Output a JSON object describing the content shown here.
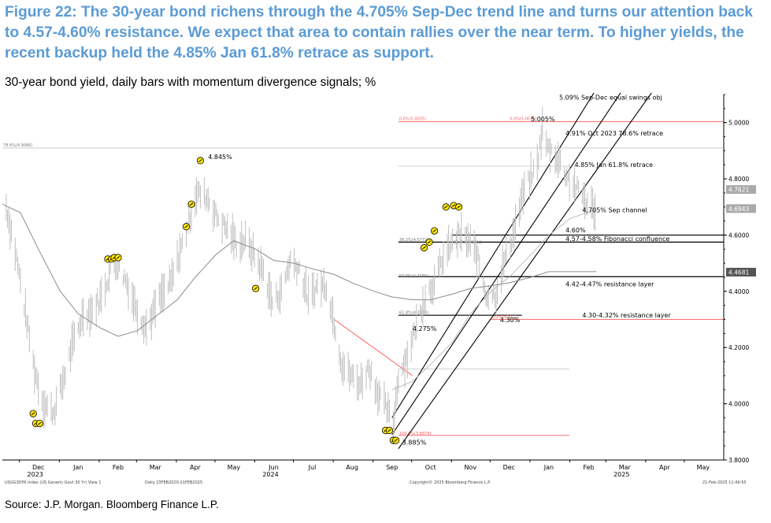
{
  "figure": {
    "title": "Figure 22: The 30-year bond richens through the 4.705% Sep-Dec trend line and turns our attention back to 4.57-4.60% resistance. We expect that area to contain rallies over the near term. To higher yields, the recent backup held the 4.85% Jan 61.8% retrace as support.",
    "subtitle": "30-year bond yield, daily bars with momentum divergence signals; %",
    "source": "Source: J.P. Morgan. Bloomberg Finance L.P."
  },
  "footer": {
    "left1": "USGG30YR Index (US Generic Govt 30 Yr) View 1",
    "left2": "Daily 23FEB2020-21FEB2025",
    "center": "Copyright© 2025 Bloomberg Finance L.P.",
    "right": "21-Feb-2025 11:49:55"
  },
  "colors": {
    "price_bars": "#bfbfbf",
    "moving_average": "#8c8c8c",
    "channel_lines": "#000000",
    "fib_lines": "#ff7070",
    "signal_marker": "#ffe600",
    "accent_title": "#5b9bd5"
  },
  "chart_data": {
    "type": "line",
    "description_type": "ohlc-daily-bars",
    "ylim": [
      3.8,
      5.1
    ],
    "y_ticks": [
      "5.0000",
      "4.8000",
      "4.6000",
      "4.4000",
      "4.2000",
      "4.0000",
      "3.8000"
    ],
    "y_tick_values": [
      5.0,
      4.8,
      4.6,
      4.4,
      4.2,
      4.0,
      3.8
    ],
    "x_month_labels": [
      "Dec",
      "Jan",
      "Feb",
      "Mar",
      "Apr",
      "May",
      "Jun",
      "Jul",
      "Aug",
      "Sep",
      "Oct",
      "Nov",
      "Dec",
      "Jan",
      "Feb",
      "Mar",
      "Apr",
      "May"
    ],
    "x_month_dates": [
      "2023-12-15",
      "2024-01-15",
      "2024-02-15",
      "2024-03-15",
      "2024-04-15",
      "2024-05-15",
      "2024-06-15",
      "2024-07-15",
      "2024-08-15",
      "2024-09-15",
      "2024-10-15",
      "2024-11-15",
      "2024-12-15",
      "2025-01-15",
      "2025-02-15",
      "2025-03-15",
      "2025-04-15",
      "2025-05-15"
    ],
    "x_year_labels": [
      "2023",
      "2024",
      "2025"
    ],
    "x_year_dates": [
      "2023-12-15",
      "2024-06-15",
      "2025-03-15"
    ],
    "x_range": [
      "2023-11-17",
      "2025-05-31"
    ],
    "yield_close_path": {
      "x": [
        "2023-11-20",
        "2023-11-28",
        "2023-12-05",
        "2023-12-12",
        "2023-12-19",
        "2023-12-27",
        "2024-01-05",
        "2024-01-10",
        "2024-01-19",
        "2024-01-26",
        "2024-02-02",
        "2024-02-09",
        "2024-02-14",
        "2024-02-21",
        "2024-03-01",
        "2024-03-08",
        "2024-03-18",
        "2024-03-27",
        "2024-04-05",
        "2024-04-16",
        "2024-04-25",
        "2024-05-01",
        "2024-05-10",
        "2024-05-17",
        "2024-05-24",
        "2024-05-31",
        "2024-06-07",
        "2024-06-14",
        "2024-06-21",
        "2024-06-28",
        "2024-07-05",
        "2024-07-12",
        "2024-07-19",
        "2024-07-26",
        "2024-08-02",
        "2024-08-07",
        "2024-08-14",
        "2024-08-21",
        "2024-08-28",
        "2024-09-04",
        "2024-09-11",
        "2024-09-16",
        "2024-09-20",
        "2024-09-27",
        "2024-10-04",
        "2024-10-11",
        "2024-10-18",
        "2024-10-25",
        "2024-11-01",
        "2024-11-06",
        "2024-11-13",
        "2024-11-20",
        "2024-11-27",
        "2024-12-05",
        "2024-12-11",
        "2024-12-18",
        "2024-12-27",
        "2025-01-06",
        "2025-01-10",
        "2025-01-14",
        "2025-01-21",
        "2025-01-28",
        "2025-02-03",
        "2025-02-10",
        "2025-02-14",
        "2025-02-21"
      ],
      "y": [
        4.7,
        4.52,
        4.32,
        4.12,
        4.0,
        3.97,
        4.11,
        4.2,
        4.32,
        4.33,
        4.38,
        4.47,
        4.5,
        4.44,
        4.33,
        4.27,
        4.37,
        4.43,
        4.57,
        4.75,
        4.73,
        4.67,
        4.62,
        4.57,
        4.58,
        4.53,
        4.47,
        4.36,
        4.4,
        4.51,
        4.48,
        4.37,
        4.42,
        4.42,
        4.27,
        4.14,
        4.1,
        4.07,
        4.13,
        4.04,
        3.98,
        3.92,
        4.1,
        4.17,
        4.28,
        4.39,
        4.43,
        4.52,
        4.57,
        4.6,
        4.58,
        4.53,
        4.39,
        4.39,
        4.5,
        4.6,
        4.76,
        4.85,
        4.98,
        4.91,
        4.88,
        4.82,
        4.78,
        4.74,
        4.71,
        4.69
      ]
    },
    "moving_average_long": {
      "x": [
        "2023-11-17",
        "2023-12-01",
        "2023-12-15",
        "2024-01-01",
        "2024-01-15",
        "2024-02-01",
        "2024-02-15",
        "2024-03-01",
        "2024-03-15",
        "2024-04-01",
        "2024-04-15",
        "2024-05-01",
        "2024-05-15",
        "2024-06-01",
        "2024-06-15",
        "2024-07-01",
        "2024-07-15",
        "2024-08-01",
        "2024-08-15",
        "2024-09-01",
        "2024-09-15",
        "2024-10-01",
        "2024-10-15",
        "2024-11-01",
        "2024-11-15",
        "2024-12-01",
        "2024-12-15",
        "2025-01-01",
        "2025-01-15",
        "2025-02-01",
        "2025-02-21"
      ],
      "y": [
        4.71,
        4.68,
        4.55,
        4.4,
        4.32,
        4.27,
        4.24,
        4.26,
        4.31,
        4.37,
        4.45,
        4.53,
        4.58,
        4.55,
        4.51,
        4.5,
        4.48,
        4.46,
        4.43,
        4.4,
        4.38,
        4.37,
        4.37,
        4.39,
        4.41,
        4.42,
        4.43,
        4.45,
        4.47,
        4.47,
        4.47
      ]
    },
    "moving_average_short": {
      "x": [
        "2024-09-15",
        "2024-10-01",
        "2024-10-15",
        "2024-11-01",
        "2024-11-15",
        "2024-12-01",
        "2024-12-15",
        "2025-01-01",
        "2025-01-15",
        "2025-02-01",
        "2025-02-21"
      ],
      "y": [
        4.05,
        4.08,
        4.14,
        4.22,
        4.32,
        4.4,
        4.45,
        4.53,
        4.6,
        4.66,
        4.69
      ]
    },
    "current_values": [
      {
        "label": "4.7621",
        "y": 4.7621
      },
      {
        "label": "4.6943",
        "y": 4.6943
      },
      {
        "label": "4.4681",
        "y": 4.4681
      }
    ],
    "horizontal_levels": [
      {
        "label": "4.60%",
        "y": 4.6,
        "x_from": "2024-11-01",
        "x_to": "2025-05-31",
        "color": "#000000"
      },
      {
        "label": "4.57-4.58% Fibonacci confluence",
        "y": 4.575,
        "x_from": "2024-09-20",
        "x_to": "2025-05-31",
        "color": "#000000"
      },
      {
        "label": "4.42-4.47% resistance layer",
        "y": 4.452,
        "x_from": "2024-09-20",
        "x_to": "2025-05-31",
        "color": "#000000"
      },
      {
        "label": "4.30-4.32% resistance layer",
        "y": 4.315,
        "x_from": "2024-09-20",
        "x_to": "2024-12-25",
        "color": "#000000"
      },
      {
        "label": "5.09% Sep-Dec equal swings obj",
        "y": 5.09,
        "x_from": "2025-01-15",
        "x_to": "2025-03-31",
        "color": "none"
      },
      {
        "label": "4.91% Oct 2023 78.6% retrace",
        "y": 4.91,
        "x_from": "2023-11-17",
        "x_to": "2025-05-31",
        "color": "#cccccc"
      },
      {
        "label": "4.85% Jan 61.8% retrace",
        "y": 4.85,
        "x_from": "2025-01-15",
        "x_to": "2025-03-31",
        "color": "none"
      },
      {
        "label": "4.705% Sep channel",
        "y": 4.69,
        "x_from": "2025-02-10",
        "x_to": "2025-03-31",
        "color": "none"
      }
    ],
    "fib_red_lines": [
      {
        "label": "0.0%(5.0035)",
        "y": 5.0035,
        "x_from": "2024-09-20",
        "x_to": "2025-05-31"
      },
      {
        "label": "100.0%(3.8874)",
        "y": 3.8874,
        "x_from": "2024-09-20",
        "x_to": "2025-01-31"
      },
      {
        "label": "",
        "y": 4.3,
        "x_from": "2024-12-01",
        "x_to": "2025-05-31"
      }
    ],
    "fib_tags": [
      {
        "label": "78.6%(4.9066)",
        "x": "2023-11-17",
        "y": 4.92
      },
      {
        "label": "0.0%(5.0035)",
        "x": "2024-09-20",
        "y": 5.015
      },
      {
        "label": "0.0%(5.0035)",
        "x": "2024-12-15",
        "y": 5.015
      },
      {
        "label": "38.2%(4.5772)",
        "x": "2024-09-20",
        "y": 4.585
      },
      {
        "label": "61.8%(4.5694)",
        "x": "2024-11-01",
        "y": 4.575
      },
      {
        "label": "50.0%(4.4455)",
        "x": "2024-09-20",
        "y": 4.455
      },
      {
        "label": "61.8%(4.3138)",
        "x": "2024-09-20",
        "y": 4.325
      },
      {
        "label": "100.0%(3.8874)",
        "x": "2024-09-20",
        "y": 3.895
      },
      {
        "label": "0.0%(4.3011)",
        "x": "2024-12-01",
        "y": 4.31
      }
    ],
    "trend_lines": [
      {
        "name": "channel-upper",
        "x": [
          "2024-09-15",
          "2025-03-31"
        ],
        "y": [
          3.95,
          5.4
        ]
      },
      {
        "name": "channel-middle",
        "x": [
          "2024-09-15",
          "2025-04-15"
        ],
        "y": [
          3.89,
          5.34
        ]
      },
      {
        "name": "channel-lower",
        "x": [
          "2024-09-20",
          "2025-05-05"
        ],
        "y": [
          3.84,
          5.3
        ]
      },
      {
        "name": "downtrend-red",
        "x": [
          "2024-08-01",
          "2024-10-01"
        ],
        "y": [
          4.3,
          4.1
        ]
      }
    ],
    "price_annotations": [
      {
        "label": "4.845%",
        "x": "2024-04-25",
        "y": 4.87
      },
      {
        "label": "5.005%",
        "x": "2025-01-01",
        "y": 5.005
      },
      {
        "label": "4.275%",
        "x": "2024-10-01",
        "y": 4.26
      },
      {
        "label": "4.30%",
        "x": "2024-12-08",
        "y": 4.29
      },
      {
        "label": "3.885%",
        "x": "2024-09-23",
        "y": 3.855
      }
    ],
    "divergence_signals": {
      "x": [
        "2023-12-11",
        "2023-12-13",
        "2023-12-16",
        "2024-02-07",
        "2024-02-10",
        "2024-02-12",
        "2024-02-15",
        "2024-04-08",
        "2024-04-12",
        "2024-04-19",
        "2024-06-01",
        "2024-09-10",
        "2024-09-13",
        "2024-09-16",
        "2024-09-18",
        "2024-10-10",
        "2024-10-14",
        "2024-10-18",
        "2024-10-27",
        "2024-11-02",
        "2024-11-06"
      ],
      "y": [
        3.965,
        3.93,
        3.93,
        4.515,
        4.515,
        4.52,
        4.52,
        4.63,
        4.71,
        4.865,
        4.41,
        3.905,
        3.905,
        3.87,
        3.87,
        4.555,
        4.575,
        4.615,
        4.7,
        4.705,
        4.7
      ]
    }
  }
}
